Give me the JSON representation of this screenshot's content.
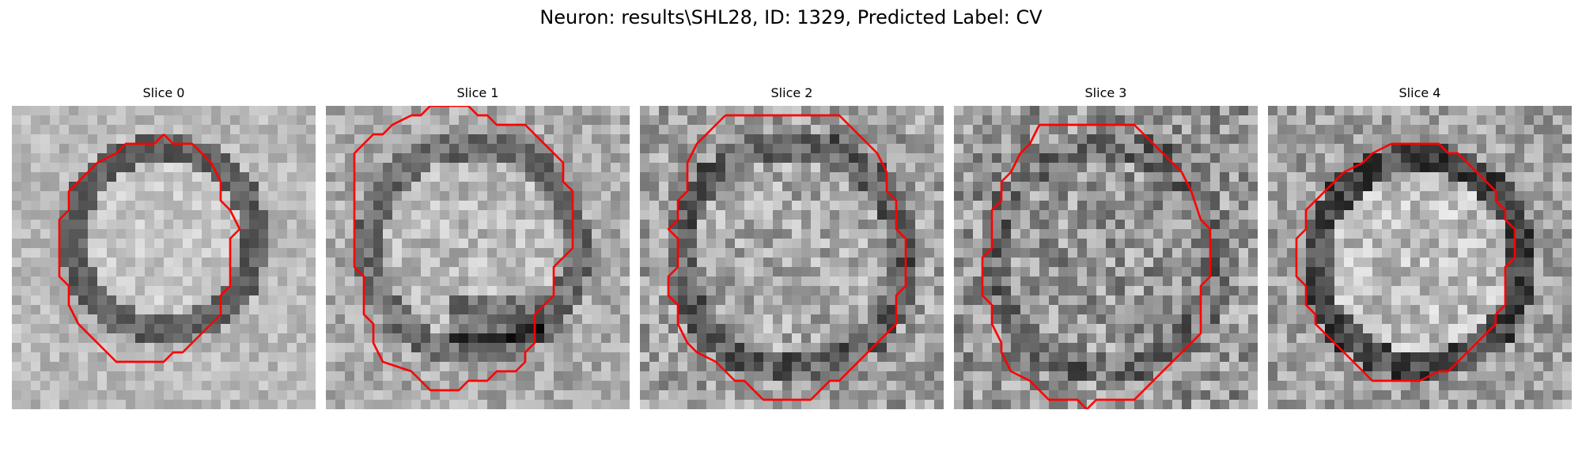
{
  "figure": {
    "title": "Neuron: results\\SHL28, ID: 1329, Predicted Label: CV"
  },
  "panels": [
    {
      "title": "Slice 0"
    },
    {
      "title": "Slice 1"
    },
    {
      "title": "Slice 2"
    },
    {
      "title": "Slice 3"
    },
    {
      "title": "Slice 4"
    }
  ],
  "colors": {
    "contour": "#ff0000",
    "background": "#ffffff"
  }
}
